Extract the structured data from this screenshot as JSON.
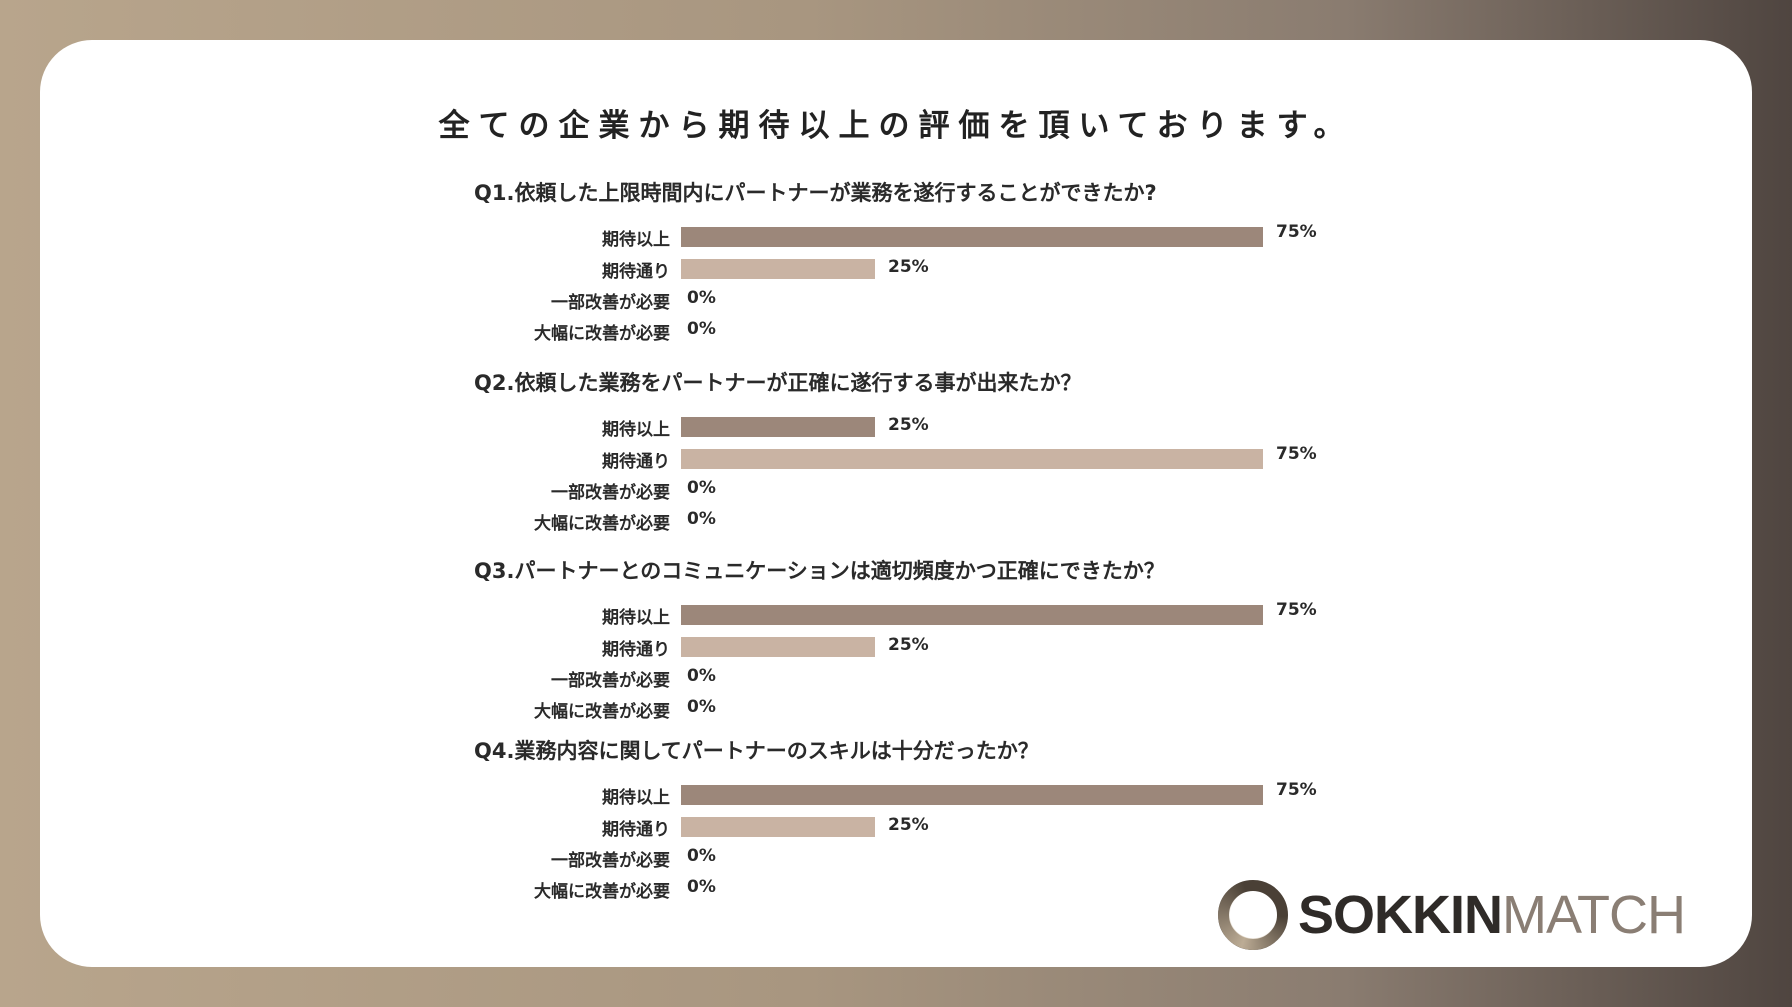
{
  "colors": {
    "bar_primary": "#9c877a",
    "bar_secondary": "#c9b3a3",
    "text": "#2a2a2a"
  },
  "title": "全ての企業から期待以上の評価を頂いております。",
  "chart_data": [
    {
      "type": "bar",
      "orientation": "horizontal",
      "title": "Q1.依頼した上限時間内にパートナーが業務を遂行することができたか?",
      "categories": [
        "期待以上",
        "期待通り",
        "一部改善が必要",
        "大幅に改善が必要"
      ],
      "values": [
        75,
        25,
        0,
        0
      ],
      "value_labels": [
        "75%",
        "25%",
        "0%",
        "0%"
      ],
      "xlim": [
        0,
        75
      ]
    },
    {
      "type": "bar",
      "orientation": "horizontal",
      "title": "Q2.依頼した業務をパートナーが正確に遂行する事が出来たか？",
      "categories": [
        "期待以上",
        "期待通り",
        "一部改善が必要",
        "大幅に改善が必要"
      ],
      "values": [
        25,
        75,
        0,
        0
      ],
      "value_labels": [
        "25%",
        "75%",
        "0%",
        "0%"
      ],
      "xlim": [
        0,
        75
      ]
    },
    {
      "type": "bar",
      "orientation": "horizontal",
      "title": "Q3.パートナーとのコミュニケーションは適切頻度かつ正確にできたか？",
      "categories": [
        "期待以上",
        "期待通り",
        "一部改善が必要",
        "大幅に改善が必要"
      ],
      "values": [
        75,
        25,
        0,
        0
      ],
      "value_labels": [
        "75%",
        "25%",
        "0%",
        "0%"
      ],
      "xlim": [
        0,
        75
      ]
    },
    {
      "type": "bar",
      "orientation": "horizontal",
      "title": "Q4.業務内容に関してパートナーのスキルは十分だったか？",
      "categories": [
        "期待以上",
        "期待通り",
        "一部改善が必要",
        "大幅に改善が必要"
      ],
      "values": [
        75,
        25,
        0,
        0
      ],
      "value_labels": [
        "75%",
        "25%",
        "0%",
        "0%"
      ],
      "xlim": [
        0,
        75
      ]
    }
  ],
  "logo": {
    "bold": "SOKKIN",
    "light": "MATCH"
  }
}
